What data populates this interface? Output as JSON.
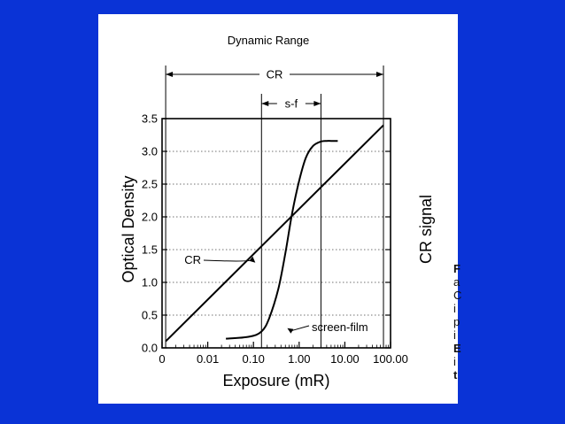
{
  "chart_data": {
    "type": "line",
    "title": "Dynamic Range",
    "xlabel": "Exposure (mR)",
    "ylabel": "Optical Density",
    "y2label": "CR signal",
    "x_scale": "log",
    "x_ticks": [
      {
        "value": 0.001,
        "label": "0"
      },
      {
        "value": 0.01,
        "label": "0.01"
      },
      {
        "value": 0.1,
        "label": "0.10"
      },
      {
        "value": 1,
        "label": "1.00"
      },
      {
        "value": 10,
        "label": "10.00"
      },
      {
        "value": 100,
        "label": "100.00"
      }
    ],
    "y_ticks": [
      "0.0",
      "0.5",
      "1.0",
      "1.5",
      "2.0",
      "2.5",
      "3.0",
      "3.5"
    ],
    "xlim": [
      0.001,
      100
    ],
    "ylim": [
      0,
      3.5
    ],
    "grid": "horizontal dotted",
    "series": [
      {
        "name": "CR",
        "x": [
          0.0012,
          70
        ],
        "y": [
          0.1,
          3.4
        ]
      },
      {
        "name": "screen-film",
        "x": [
          0.025,
          0.08,
          0.15,
          0.22,
          0.35,
          0.5,
          0.7,
          1.0,
          1.4,
          2.0,
          3.0,
          4.0,
          5.0,
          7.0
        ],
        "y": [
          0.14,
          0.17,
          0.25,
          0.45,
          0.9,
          1.45,
          2.05,
          2.55,
          2.9,
          3.08,
          3.15,
          3.16,
          3.16,
          3.16
        ]
      }
    ],
    "annotations": {
      "cr_range": {
        "label": "CR",
        "from": 0.0012,
        "to": 70
      },
      "sf_range": {
        "label": "s-f",
        "from": 0.15,
        "to": 3.0
      }
    }
  },
  "right_edge_text": [
    "F",
    "a",
    "C",
    "i",
    "p",
    "i",
    "E",
    "i",
    "t"
  ]
}
